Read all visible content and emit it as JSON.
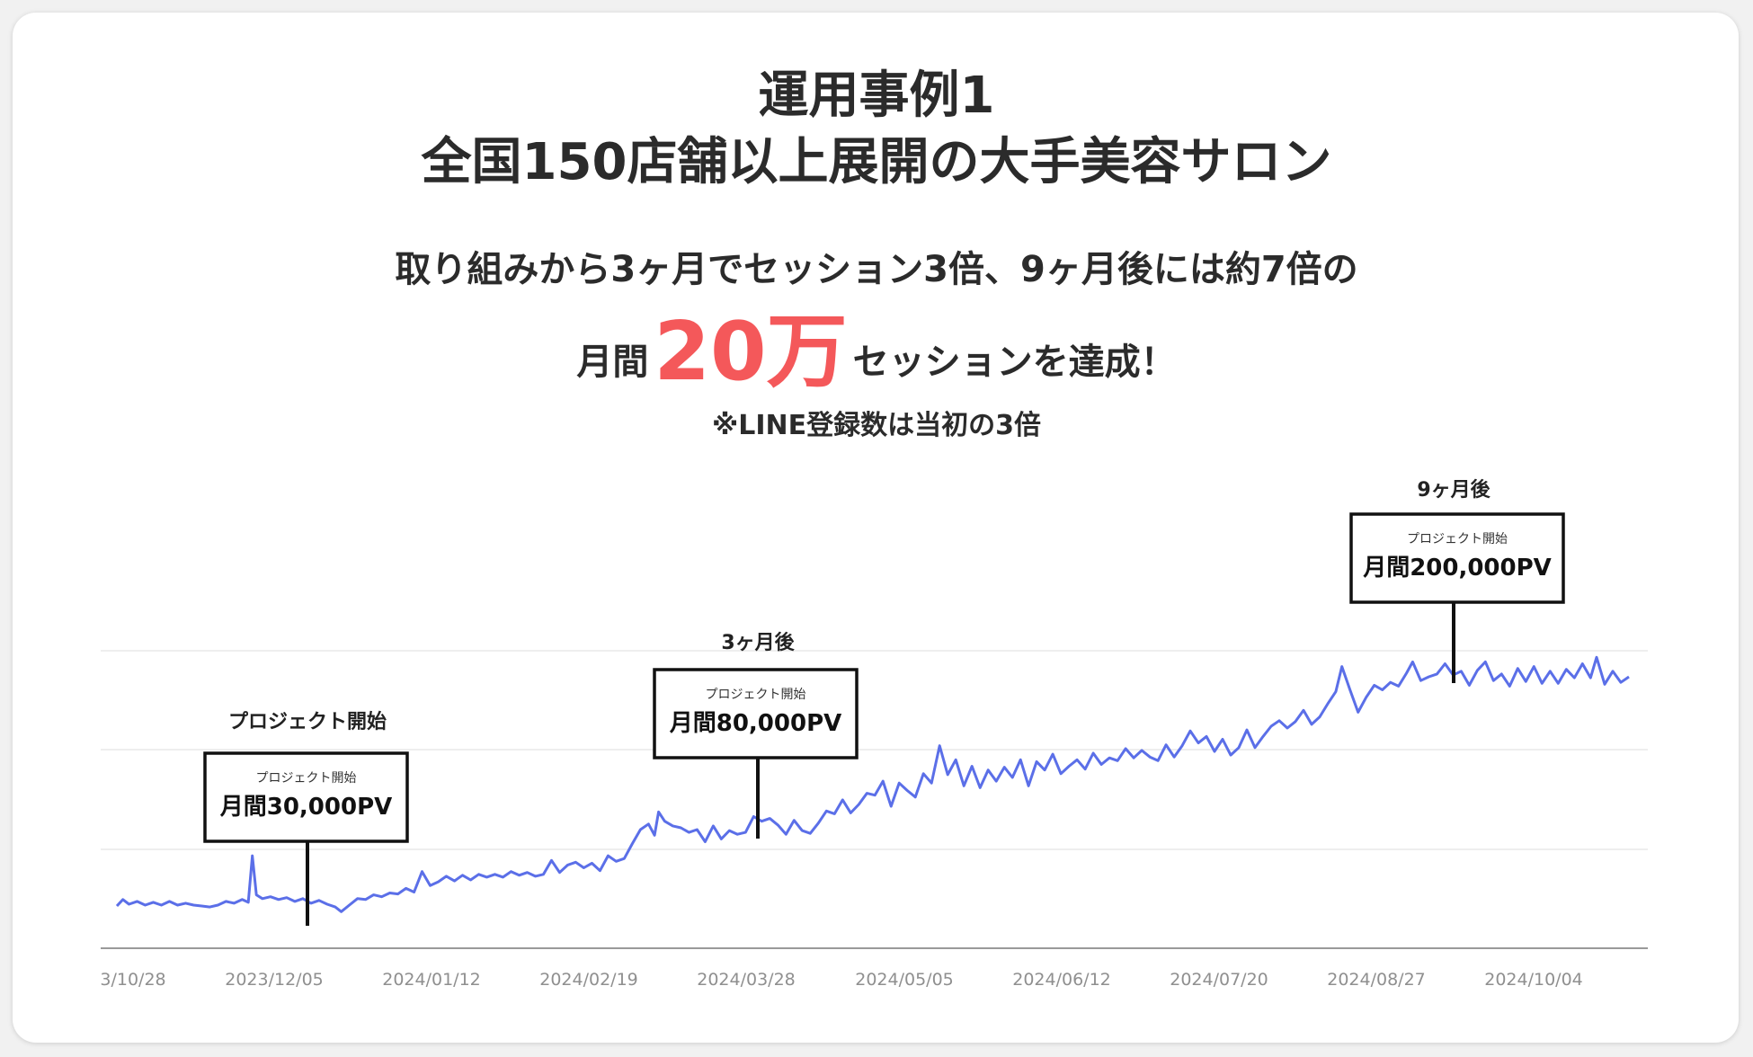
{
  "header": {
    "title_line1": "運用事例1",
    "title_line2": "全国150店舗以上展開の大手美容サロン",
    "summary_line1": "取り組みから3ヶ月でセッション3倍、9ヶ月後には約7倍の",
    "summary_prefix": "月間",
    "summary_highlight": "20万",
    "summary_suffix": "セッションを達成！",
    "note": "※LINE登録数は当初の3倍"
  },
  "colors": {
    "line": "#5b6fe8",
    "highlight": "#f4585a",
    "grid": "#e8e8e8",
    "axis": "#9a9a9a"
  },
  "chart_data": {
    "type": "line",
    "x_ticks": [
      "3/10/28",
      "2023/12/05",
      "2024/01/12",
      "2024/02/19",
      "2024/03/28",
      "2024/05/05",
      "2024/06/12",
      "2024/07/20",
      "2024/08/27",
      "2024/10/04"
    ],
    "grid": true,
    "series": [
      {
        "name": "",
        "points": [
          [
            0,
            26000
          ],
          [
            3,
            33000
          ],
          [
            6,
            28000
          ],
          [
            10,
            31000
          ],
          [
            14,
            27000
          ],
          [
            18,
            30000
          ],
          [
            22,
            27000
          ],
          [
            26,
            31000
          ],
          [
            30,
            27000
          ],
          [
            34,
            29000
          ],
          [
            38,
            27000
          ],
          [
            42,
            26000
          ],
          [
            46,
            25000
          ],
          [
            50,
            27000
          ],
          [
            54,
            31000
          ],
          [
            58,
            29000
          ],
          [
            62,
            33000
          ],
          [
            65,
            30000
          ],
          [
            67,
            80000
          ],
          [
            69,
            38000
          ],
          [
            72,
            34000
          ],
          [
            76,
            36000
          ],
          [
            80,
            33000
          ],
          [
            84,
            35000
          ],
          [
            88,
            31000
          ],
          [
            92,
            34000
          ],
          [
            96,
            29000
          ],
          [
            100,
            32000
          ],
          [
            104,
            28000
          ],
          [
            108,
            25000
          ],
          [
            111,
            20000
          ],
          [
            115,
            27000
          ],
          [
            119,
            34000
          ],
          [
            123,
            33000
          ],
          [
            127,
            38000
          ],
          [
            131,
            36000
          ],
          [
            135,
            40000
          ],
          [
            139,
            39000
          ],
          [
            143,
            45000
          ],
          [
            147,
            41000
          ],
          [
            151,
            63000
          ],
          [
            155,
            48000
          ],
          [
            159,
            52000
          ],
          [
            163,
            58000
          ],
          [
            167,
            53000
          ],
          [
            171,
            59000
          ],
          [
            175,
            54000
          ],
          [
            179,
            60000
          ],
          [
            183,
            57000
          ],
          [
            187,
            60000
          ],
          [
            191,
            57000
          ],
          [
            195,
            63000
          ],
          [
            199,
            59000
          ],
          [
            203,
            62000
          ],
          [
            207,
            58000
          ],
          [
            211,
            60000
          ],
          [
            215,
            75000
          ],
          [
            219,
            62000
          ],
          [
            223,
            70000
          ],
          [
            227,
            73000
          ],
          [
            231,
            67000
          ],
          [
            235,
            72000
          ],
          [
            239,
            64000
          ],
          [
            243,
            80000
          ],
          [
            247,
            74000
          ],
          [
            251,
            77000
          ],
          [
            255,
            93000
          ],
          [
            259,
            108000
          ],
          [
            263,
            114000
          ],
          [
            266,
            102000
          ],
          [
            268,
            127000
          ],
          [
            271,
            117000
          ],
          [
            275,
            112000
          ],
          [
            279,
            110000
          ],
          [
            283,
            105000
          ],
          [
            287,
            108000
          ],
          [
            291,
            95000
          ],
          [
            295,
            112000
          ],
          [
            299,
            98000
          ],
          [
            303,
            107000
          ],
          [
            307,
            103000
          ],
          [
            311,
            105000
          ],
          [
            315,
            122000
          ],
          [
            319,
            117000
          ],
          [
            323,
            120000
          ],
          [
            327,
            113000
          ],
          [
            331,
            103000
          ],
          [
            335,
            118000
          ],
          [
            339,
            107000
          ],
          [
            343,
            104000
          ],
          [
            347,
            115000
          ],
          [
            351,
            128000
          ],
          [
            355,
            125000
          ],
          [
            359,
            140000
          ],
          [
            363,
            126000
          ],
          [
            367,
            135000
          ],
          [
            371,
            147000
          ],
          [
            375,
            145000
          ],
          [
            379,
            160000
          ],
          [
            383,
            133000
          ],
          [
            387,
            158000
          ],
          [
            391,
            150000
          ],
          [
            395,
            143000
          ],
          [
            399,
            168000
          ],
          [
            403,
            158000
          ],
          [
            407,
            198000
          ],
          [
            411,
            167000
          ],
          [
            415,
            183000
          ],
          [
            419,
            155000
          ],
          [
            423,
            176000
          ],
          [
            427,
            153000
          ],
          [
            431,
            172000
          ],
          [
            435,
            160000
          ],
          [
            439,
            175000
          ],
          [
            443,
            164000
          ],
          [
            447,
            183000
          ],
          [
            451,
            155000
          ],
          [
            455,
            181000
          ],
          [
            459,
            172000
          ],
          [
            463,
            189000
          ],
          [
            467,
            168000
          ],
          [
            471,
            176000
          ],
          [
            475,
            183000
          ],
          [
            479,
            173000
          ],
          [
            483,
            190000
          ],
          [
            487,
            178000
          ],
          [
            491,
            185000
          ],
          [
            495,
            182000
          ],
          [
            499,
            195000
          ],
          [
            503,
            185000
          ],
          [
            507,
            193000
          ],
          [
            511,
            186000
          ],
          [
            515,
            182000
          ],
          [
            519,
            199000
          ],
          [
            523,
            186000
          ],
          [
            527,
            198000
          ],
          [
            531,
            214000
          ],
          [
            535,
            201000
          ],
          [
            539,
            208000
          ],
          [
            543,
            192000
          ],
          [
            547,
            205000
          ],
          [
            551,
            188000
          ],
          [
            555,
            196000
          ],
          [
            559,
            215000
          ],
          [
            563,
            196000
          ],
          [
            567,
            208000
          ],
          [
            571,
            219000
          ],
          [
            575,
            225000
          ],
          [
            579,
            217000
          ],
          [
            583,
            224000
          ],
          [
            587,
            236000
          ],
          [
            591,
            221000
          ],
          [
            595,
            229000
          ],
          [
            599,
            243000
          ],
          [
            603,
            256000
          ],
          [
            606,
            283000
          ],
          [
            610,
            258000
          ],
          [
            614,
            234000
          ],
          [
            618,
            250000
          ],
          [
            622,
            263000
          ],
          [
            626,
            258000
          ],
          [
            630,
            266000
          ],
          [
            634,
            262000
          ],
          [
            638,
            276000
          ],
          [
            641,
            288000
          ],
          [
            645,
            268000
          ],
          [
            649,
            272000
          ],
          [
            653,
            275000
          ],
          [
            657,
            286000
          ],
          [
            661,
            274000
          ],
          [
            665,
            278000
          ],
          [
            669,
            263000
          ],
          [
            673,
            279000
          ],
          [
            677,
            288000
          ],
          [
            681,
            268000
          ],
          [
            685,
            275000
          ],
          [
            689,
            262000
          ],
          [
            693,
            281000
          ],
          [
            697,
            267000
          ],
          [
            701,
            283000
          ],
          [
            705,
            265000
          ],
          [
            709,
            278000
          ],
          [
            713,
            265000
          ],
          [
            717,
            280000
          ],
          [
            721,
            271000
          ],
          [
            725,
            286000
          ],
          [
            729,
            271000
          ],
          [
            732,
            293000
          ],
          [
            736,
            264000
          ],
          [
            740,
            278000
          ],
          [
            744,
            266000
          ],
          [
            748,
            272000
          ]
        ]
      }
    ],
    "annotations": [
      {
        "label": "プロジェクト開始",
        "box_small": "プロジェクト開始",
        "box_big": "月間30,000PV"
      },
      {
        "label": "3ヶ月後",
        "box_small": "プロジェクト開始",
        "box_big": "月間80,000PV"
      },
      {
        "label": "9ヶ月後",
        "box_small": "プロジェクト開始",
        "box_big": "月間200,000PV"
      }
    ]
  }
}
